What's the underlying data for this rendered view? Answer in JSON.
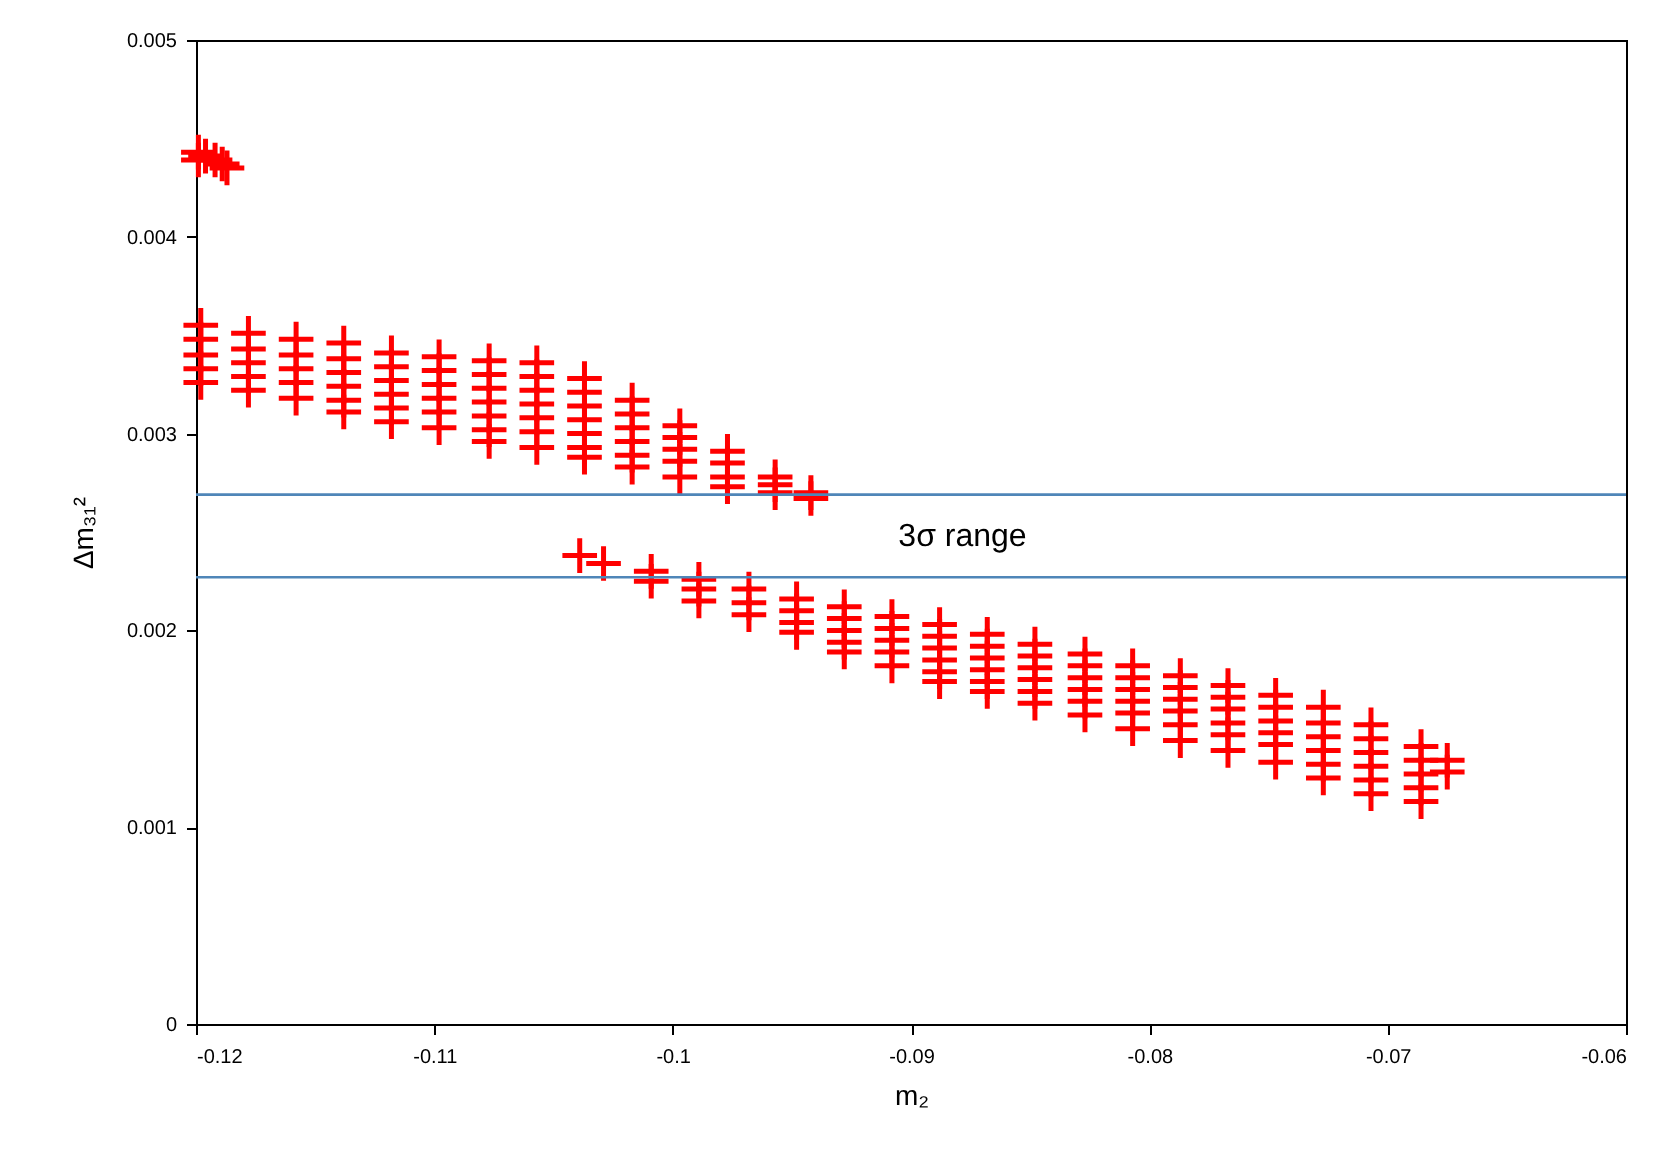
{
  "chart_data": {
    "type": "scatter",
    "xlabel": "m₂",
    "ylabel": "Δm₃₁²",
    "xlim": [
      -0.12,
      -0.06
    ],
    "ylim": [
      0,
      0.005
    ],
    "xticks": [
      -0.12,
      -0.11,
      -0.1,
      -0.09,
      -0.08,
      -0.07,
      -0.06
    ],
    "yticks": [
      0,
      0.001,
      0.002,
      0.003,
      0.004,
      0.005
    ],
    "marker": "cross",
    "series": [
      {
        "color": "#ff0000",
        "x": [
          -0.1199,
          -0.1199,
          -0.1196,
          -0.1192,
          -0.1189,
          -0.1187,
          -0.1198,
          -0.1198,
          -0.1198,
          -0.1198,
          -0.1198,
          -0.1178,
          -0.1178,
          -0.1178,
          -0.1178,
          -0.1178,
          -0.1158,
          -0.1158,
          -0.1158,
          -0.1158,
          -0.1158,
          -0.1138,
          -0.1138,
          -0.1138,
          -0.1138,
          -0.1138,
          -0.1138,
          -0.1118,
          -0.1118,
          -0.1118,
          -0.1118,
          -0.1118,
          -0.1118,
          -0.1098,
          -0.1098,
          -0.1098,
          -0.1098,
          -0.1098,
          -0.1098,
          -0.1077,
          -0.1077,
          -0.1077,
          -0.1077,
          -0.1077,
          -0.1077,
          -0.1077,
          -0.1057,
          -0.1057,
          -0.1057,
          -0.1057,
          -0.1057,
          -0.1057,
          -0.1057,
          -0.1037,
          -0.1037,
          -0.1037,
          -0.1037,
          -0.1037,
          -0.1037,
          -0.1037,
          -0.1017,
          -0.1017,
          -0.1017,
          -0.1017,
          -0.1017,
          -0.1017,
          -0.0997,
          -0.0997,
          -0.0997,
          -0.0997,
          -0.0997,
          -0.0977,
          -0.0977,
          -0.0977,
          -0.0977,
          -0.0957,
          -0.0957,
          -0.0957,
          -0.0942,
          -0.0942,
          -0.1039,
          -0.1029,
          -0.1009,
          -0.1009,
          -0.0989,
          -0.0989,
          -0.0989,
          -0.0968,
          -0.0968,
          -0.0968,
          -0.0948,
          -0.0948,
          -0.0948,
          -0.0948,
          -0.0928,
          -0.0928,
          -0.0928,
          -0.0928,
          -0.0928,
          -0.0908,
          -0.0908,
          -0.0908,
          -0.0908,
          -0.0908,
          -0.0888,
          -0.0888,
          -0.0888,
          -0.0888,
          -0.0888,
          -0.0888,
          -0.0868,
          -0.0868,
          -0.0868,
          -0.0868,
          -0.0868,
          -0.0868,
          -0.0848,
          -0.0848,
          -0.0848,
          -0.0848,
          -0.0848,
          -0.0848,
          -0.0827,
          -0.0827,
          -0.0827,
          -0.0827,
          -0.0827,
          -0.0827,
          -0.0807,
          -0.0807,
          -0.0807,
          -0.0807,
          -0.0807,
          -0.0807,
          -0.0787,
          -0.0787,
          -0.0787,
          -0.0787,
          -0.0787,
          -0.0787,
          -0.0767,
          -0.0767,
          -0.0767,
          -0.0767,
          -0.0767,
          -0.0767,
          -0.0747,
          -0.0747,
          -0.0747,
          -0.0747,
          -0.0747,
          -0.0747,
          -0.0727,
          -0.0727,
          -0.0727,
          -0.0727,
          -0.0727,
          -0.0727,
          -0.0707,
          -0.0707,
          -0.0707,
          -0.0707,
          -0.0707,
          -0.0707,
          -0.0686,
          -0.0686,
          -0.0686,
          -0.0686,
          -0.0686,
          -0.0675,
          -0.0675
        ],
        "values": [
          0.00443,
          0.00439,
          0.00441,
          0.00439,
          0.00437,
          0.00435,
          0.00355,
          0.00348,
          0.0034,
          0.00333,
          0.00326,
          0.00351,
          0.00343,
          0.00336,
          0.00329,
          0.00322,
          0.00348,
          0.0034,
          0.00333,
          0.00326,
          0.00318,
          0.00346,
          0.00338,
          0.00331,
          0.00324,
          0.00317,
          0.00311,
          0.00341,
          0.00334,
          0.00327,
          0.0032,
          0.00313,
          0.00306,
          0.00339,
          0.00332,
          0.00325,
          0.00318,
          0.00311,
          0.00303,
          0.00337,
          0.0033,
          0.00323,
          0.00316,
          0.00309,
          0.00302,
          0.00296,
          0.00336,
          0.00329,
          0.00322,
          0.00315,
          0.00308,
          0.00301,
          0.00293,
          0.00328,
          0.00321,
          0.00314,
          0.00307,
          0.003,
          0.00293,
          0.00288,
          0.00317,
          0.0031,
          0.00303,
          0.00296,
          0.00289,
          0.00283,
          0.00304,
          0.00298,
          0.00292,
          0.00286,
          0.00278,
          0.00291,
          0.00285,
          0.00278,
          0.00273,
          0.00278,
          0.00274,
          0.0027,
          0.0027,
          0.00267,
          0.00238,
          0.00234,
          0.0023,
          0.00225,
          0.00226,
          0.00221,
          0.00215,
          0.00221,
          0.00214,
          0.00208,
          0.00216,
          0.0021,
          0.00204,
          0.00199,
          0.00212,
          0.00206,
          0.002,
          0.00194,
          0.00189,
          0.00207,
          0.00201,
          0.00195,
          0.00189,
          0.00182,
          0.00203,
          0.00197,
          0.00191,
          0.00185,
          0.00179,
          0.00174,
          0.00198,
          0.00192,
          0.00186,
          0.0018,
          0.00174,
          0.00169,
          0.00193,
          0.00187,
          0.00181,
          0.00175,
          0.00169,
          0.00163,
          0.00188,
          0.00182,
          0.00176,
          0.0017,
          0.00164,
          0.00157,
          0.00182,
          0.00176,
          0.0017,
          0.00164,
          0.00158,
          0.0015,
          0.00177,
          0.00171,
          0.00165,
          0.00159,
          0.00152,
          0.00144,
          0.00172,
          0.00166,
          0.0016,
          0.00153,
          0.00147,
          0.00139,
          0.00167,
          0.00161,
          0.00154,
          0.00148,
          0.00142,
          0.00133,
          0.00161,
          0.00153,
          0.00146,
          0.00139,
          0.00132,
          0.00125,
          0.00152,
          0.00145,
          0.00138,
          0.00131,
          0.00124,
          0.00117,
          0.00141,
          0.00134,
          0.00127,
          0.0012,
          0.00113,
          0.00134,
          0.00128
        ]
      }
    ],
    "ref_lines": [
      {
        "axis": "y",
        "value": 0.00269,
        "color": "#4f86b8"
      },
      {
        "axis": "y",
        "value": 0.00227,
        "color": "#4f86b8"
      }
    ],
    "annotations": [
      "3σ range"
    ]
  }
}
